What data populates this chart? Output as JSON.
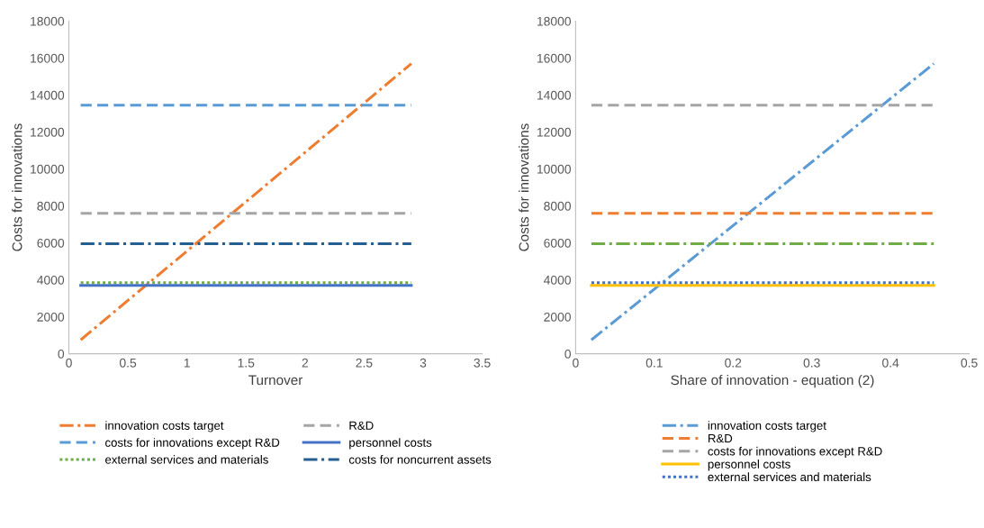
{
  "chart_data": [
    {
      "type": "line",
      "xlabel": "Turnover",
      "ylabel": "Costs for innovations",
      "xlim": [
        0,
        3.5
      ],
      "xticks": [
        0,
        0.5,
        1,
        1.5,
        2,
        2.5,
        3,
        3.5
      ],
      "ylim": [
        0,
        18000
      ],
      "yticks": [
        0,
        2000,
        4000,
        6000,
        8000,
        10000,
        12000,
        14000,
        16000,
        18000
      ],
      "grid": false,
      "legend": "bottom",
      "series": [
        {
          "name": "innovation costs target",
          "color": "#ed7d31",
          "line_style": "dashdot",
          "x": [
            0.1,
            2.9
          ],
          "values": [
            750,
            15700
          ]
        },
        {
          "name": "costs for innovations except R&D",
          "color": "#5b9bd5",
          "line_style": "dashed",
          "x": [
            0.1,
            2.9
          ],
          "values": [
            13450,
            13450
          ]
        },
        {
          "name": "external services and materials",
          "color": "#70ad47",
          "line_style": "dotted",
          "x": [
            0.1,
            2.9
          ],
          "values": [
            3850,
            3850
          ]
        },
        {
          "name": "R&D",
          "color": "#a5a5a5",
          "line_style": "dashed",
          "x": [
            0.1,
            2.9
          ],
          "values": [
            7600,
            7600
          ]
        },
        {
          "name": "personnel costs",
          "color": "#4472c4",
          "line_style": "solid",
          "x": [
            0.1,
            2.9
          ],
          "values": [
            3700,
            3700
          ]
        },
        {
          "name": "costs for noncurrent assets",
          "color": "#255e91",
          "line_style": "dashdot",
          "x": [
            0.1,
            2.9
          ],
          "values": [
            5950,
            5950
          ]
        }
      ]
    },
    {
      "type": "line",
      "xlabel": "Share of innovation - equation (2)",
      "ylabel": "Costs for innovations",
      "xlim": [
        0,
        0.5
      ],
      "xticks": [
        0,
        0.1,
        0.2,
        0.3,
        0.4,
        0.5
      ],
      "ylim": [
        0,
        18000
      ],
      "yticks": [
        0,
        2000,
        4000,
        6000,
        8000,
        10000,
        12000,
        14000,
        16000,
        18000
      ],
      "grid": false,
      "legend": "bottom",
      "series": [
        {
          "name": "innovation costs target",
          "color": "#5b9bd5",
          "line_style": "dashdot",
          "x": [
            0.02,
            0.455
          ],
          "values": [
            750,
            15700
          ]
        },
        {
          "name": "R&D",
          "color": "#ed7d31",
          "line_style": "dashed",
          "x": [
            0.02,
            0.455
          ],
          "values": [
            7600,
            7600
          ]
        },
        {
          "name": "costs for innovations except R&D",
          "color": "#a5a5a5",
          "line_style": "dashed",
          "x": [
            0.02,
            0.455
          ],
          "values": [
            13450,
            13450
          ]
        },
        {
          "name": "personnel costs",
          "color": "#ffc000",
          "line_style": "solid",
          "x": [
            0.02,
            0.455
          ],
          "values": [
            3700,
            3700
          ]
        },
        {
          "name": "external services and materials",
          "color": "#4472c4",
          "line_style": "dotted",
          "x": [
            0.02,
            0.455
          ],
          "values": [
            3850,
            3850
          ]
        },
        {
          "color": "#70ad47",
          "line_style": "dashdot",
          "x": [
            0.02,
            0.455
          ],
          "values": [
            5950,
            5950
          ]
        }
      ]
    }
  ]
}
